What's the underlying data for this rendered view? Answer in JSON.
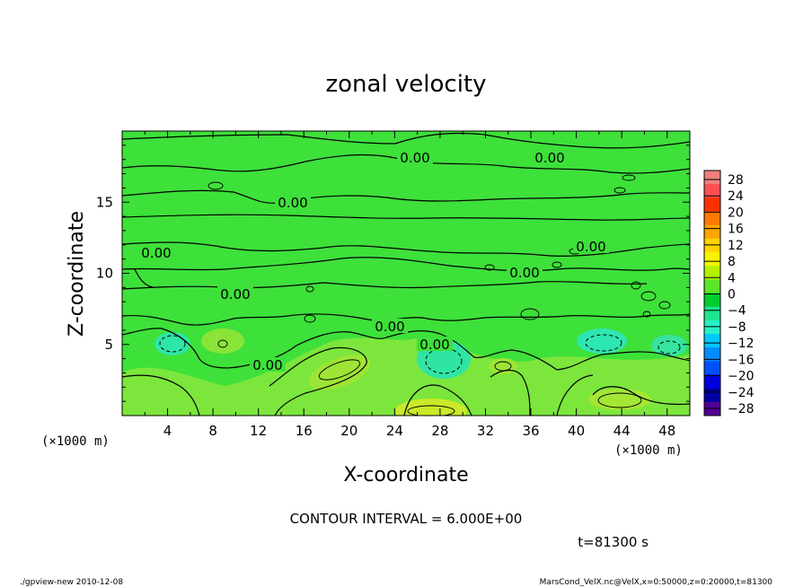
{
  "chart_data": {
    "type": "heatmap",
    "title": "zonal velocity",
    "xlabel": "X-coordinate",
    "ylabel": "Z-coordinate",
    "x_unit_left": "(×1000 m)",
    "x_unit_right": "(×1000 m)",
    "xlim": [
      0,
      50
    ],
    "ylim": [
      0,
      20
    ],
    "x_ticks": [
      "4",
      "8",
      "12",
      "16",
      "20",
      "24",
      "28",
      "32",
      "36",
      "40",
      "44",
      "48"
    ],
    "y_ticks": [
      "5",
      "10",
      "15"
    ],
    "contour_labels": [
      "0.00",
      "0.00",
      "0.00",
      "0.00",
      "0.00",
      "0.00",
      "0.00",
      "0.00",
      "0.00",
      "0.00"
    ],
    "colorbar": {
      "labels": [
        "28",
        "24",
        "20",
        "16",
        "12",
        "8",
        "4",
        "0",
        "−4",
        "−8",
        "−12",
        "−16",
        "−20",
        "−24",
        "−28"
      ],
      "colors": [
        "#f08080",
        "#ff5050",
        "#ff3000",
        "#ff7a00",
        "#ffa500",
        "#ffd200",
        "#f5f500",
        "#b4f000",
        "#5ae628",
        "#00cc2e",
        "#1ee68c",
        "#28f0c8",
        "#00c8ff",
        "#008cff",
        "#0050ff",
        "#0000dc",
        "#0000a0",
        "#500096"
      ]
    },
    "contour_interval": "CONTOUR INTERVAL = 6.000E+00",
    "time_label": "t=81300 s"
  },
  "footer": {
    "left": "./gpview-new   2010-12-08",
    "right": "MarsCond_VelX.nc@VelX,x=0:50000,z=0:20000,t=81300"
  }
}
